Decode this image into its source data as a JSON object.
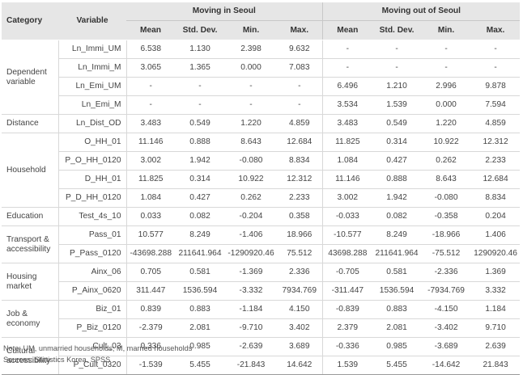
{
  "headers": {
    "category": "Category",
    "variable": "Variable",
    "group_in": "Moving in Seoul",
    "group_out": "Moving out of Seoul",
    "stats": [
      "Mean",
      "Std. Dev.",
      "Min.",
      "Max.",
      "Mean",
      "Std. Dev.",
      "Min.",
      "Max."
    ]
  },
  "rows": [
    {
      "category": "Dependent variable",
      "variable": "Ln_Immi_UM",
      "values": [
        "6.538",
        "1.130",
        "2.398",
        "9.632",
        "-",
        "-",
        "-",
        "-"
      ]
    },
    {
      "category": "",
      "variable": "Ln_Immi_M",
      "values": [
        "3.065",
        "1.365",
        "0.000",
        "7.083",
        "-",
        "-",
        "-",
        "-"
      ]
    },
    {
      "category": "",
      "variable": "Ln_Emi_UM",
      "values": [
        "-",
        "-",
        "-",
        "-",
        "6.496",
        "1.210",
        "2.996",
        "9.878"
      ]
    },
    {
      "category": "",
      "variable": "Ln_Emi_M",
      "values": [
        "-",
        "-",
        "-",
        "-",
        "3.534",
        "1.539",
        "0.000",
        "7.594"
      ]
    },
    {
      "category": "Distance",
      "variable": "Ln_Dist_OD",
      "values": [
        "3.483",
        "0.549",
        "1.220",
        "4.859",
        "3.483",
        "0.549",
        "1.220",
        "4.859"
      ]
    },
    {
      "category": "Household",
      "variable": "O_HH_01",
      "values": [
        "11.146",
        "0.888",
        "8.643",
        "12.684",
        "11.825",
        "0.314",
        "10.922",
        "12.312"
      ]
    },
    {
      "category": "",
      "variable": "P_O_HH_0120",
      "values": [
        "3.002",
        "1.942",
        "-0.080",
        "8.834",
        "1.084",
        "0.427",
        "0.262",
        "2.233"
      ]
    },
    {
      "category": "",
      "variable": "D_HH_01",
      "values": [
        "11.825",
        "0.314",
        "10.922",
        "12.312",
        "11.146",
        "0.888",
        "8.643",
        "12.684"
      ]
    },
    {
      "category": "",
      "variable": "P_D_HH_0120",
      "values": [
        "1.084",
        "0.427",
        "0.262",
        "2.233",
        "3.002",
        "1.942",
        "-0.080",
        "8.834"
      ]
    },
    {
      "category": "Education",
      "variable": "Test_4s_10",
      "values": [
        "0.033",
        "0.082",
        "-0.204",
        "0.358",
        "-0.033",
        "0.082",
        "-0.358",
        "0.204"
      ]
    },
    {
      "category": "Transport & accessibility",
      "variable": "Pass_01",
      "values": [
        "10.577",
        "8.249",
        "-1.406",
        "18.966",
        "-10.577",
        "8.249",
        "-18.966",
        "1.406"
      ]
    },
    {
      "category": "",
      "variable": "P_Pass_0120",
      "values": [
        "-43698.288",
        "211641.964",
        "-1290920.46",
        "75.512",
        "43698.288",
        "211641.964",
        "-75.512",
        "1290920.46"
      ]
    },
    {
      "category": "Housing market",
      "variable": "Ainx_06",
      "values": [
        "0.705",
        "0.581",
        "-1.369",
        "2.336",
        "-0.705",
        "0.581",
        "-2.336",
        "1.369"
      ]
    },
    {
      "category": "",
      "variable": "P_Ainx_0620",
      "values": [
        "311.447",
        "1536.594",
        "-3.332",
        "7934.769",
        "-311.447",
        "1536.594",
        "-7934.769",
        "3.332"
      ]
    },
    {
      "category": "Job & economy",
      "variable": "Biz_01",
      "values": [
        "0.839",
        "0.883",
        "-1.184",
        "4.150",
        "-0.839",
        "0.883",
        "-4.150",
        "1.184"
      ]
    },
    {
      "category": "",
      "variable": "P_Biz_0120",
      "values": [
        "-2.379",
        "2.081",
        "-9.710",
        "3.402",
        "2.379",
        "2.081",
        "-3.402",
        "9.710"
      ]
    },
    {
      "category": "Cultural accessibility",
      "variable": "Cult_03",
      "values": [
        "0.336",
        "0.985",
        "-2.639",
        "3.689",
        "-0.336",
        "0.985",
        "-3.689",
        "2.639"
      ]
    },
    {
      "category": "",
      "variable": "P_Cult_0320",
      "values": [
        "-1.539",
        "5.455",
        "-21.843",
        "14.642",
        "1.539",
        "5.455",
        "-14.642",
        "21.843"
      ]
    }
  ],
  "notes": {
    "note": "Note: UM, unmarried households; M, married households",
    "sources": "Sources: Statistics Korea, SPSS"
  }
}
